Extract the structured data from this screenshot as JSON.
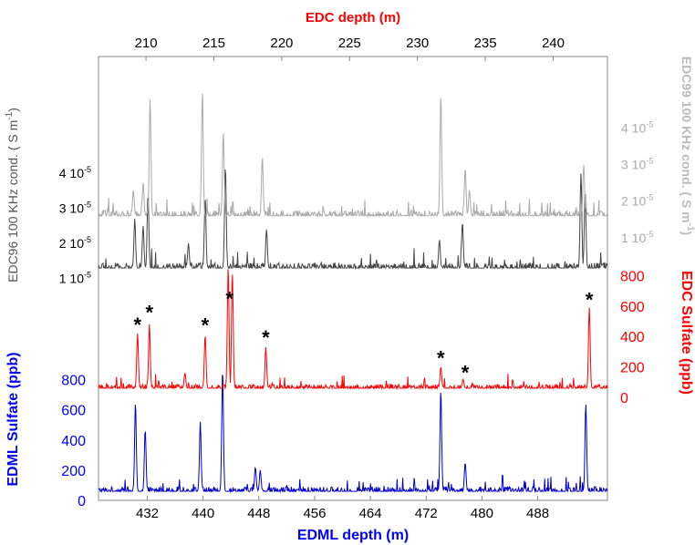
{
  "chart_data": {
    "type": "line",
    "x_axis_bottom": {
      "label": "EDML depth (m)",
      "range": [
        425,
        498
      ],
      "ticks": [
        432,
        440,
        448,
        456,
        464,
        472,
        480,
        488
      ],
      "color": "#0000ff"
    },
    "x_axis_top": {
      "label": "EDC depth (m)",
      "range": [
        206.5,
        244
      ],
      "ticks": [
        210,
        215,
        220,
        225,
        230,
        235,
        240
      ],
      "color": "#ff0000"
    },
    "left_axes": {
      "edml_sulfate": {
        "label": "EDML Sulfate (ppb)",
        "color": "#0000ff",
        "range": [
          0,
          900
        ],
        "ticks": [
          "0",
          "200",
          "400",
          "600",
          "800"
        ]
      },
      "edc96_cond": {
        "label": "EDC96 100 KHz cond. ( S m",
        "label_superscript": "-1",
        "label_suffix": ")",
        "color": "#555555",
        "range": [
          0.5,
          5.5
        ],
        "tick_values": [
          1,
          2,
          3,
          4
        ],
        "tick_mantissa": [
          "1 10",
          "2 10",
          "3 10",
          "4 10"
        ],
        "tick_exponent": "-5"
      }
    },
    "right_axes": {
      "edc_sulfate": {
        "label": "EDC Sulfate (ppb)",
        "color": "#ff0000",
        "range": [
          0,
          880
        ],
        "ticks": [
          "0",
          "200",
          "400",
          "600",
          "800"
        ]
      },
      "edc99_cond": {
        "label": "EDC99 100 KHz cond. ( S m",
        "label_superscript": "-1",
        "label_suffix": ")",
        "color": "#bbbbbb",
        "range": [
          0.6,
          5.2
        ],
        "tick_values": [
          1,
          2,
          3,
          4
        ],
        "tick_mantissa": [
          "1 10",
          "2 10",
          "3 10",
          "4 10"
        ],
        "tick_exponent": "-5"
      }
    },
    "series": [
      {
        "name": "EDML Sulfate",
        "color": "#0000cc",
        "axis": "edml_sulfate",
        "baseline": 60,
        "noise": 30,
        "peaks": [
          [
            430.3,
            650
          ],
          [
            431.7,
            470
          ],
          [
            439.6,
            520
          ],
          [
            442.8,
            870
          ],
          [
            447.5,
            220
          ],
          [
            448.2,
            200
          ],
          [
            474.1,
            730
          ],
          [
            477.6,
            250
          ],
          [
            494.9,
            640
          ]
        ]
      },
      {
        "name": "EDC Sulfate",
        "color": "#ff0000",
        "axis": "edc_sulfate",
        "baseline": 60,
        "noise": 25,
        "peaks": [
          [
            430.6,
            420
          ],
          [
            432.3,
            480
          ],
          [
            437.4,
            160
          ],
          [
            440.3,
            410
          ],
          [
            443.6,
            860
          ],
          [
            444.2,
            820
          ],
          [
            449.0,
            330
          ],
          [
            474.1,
            200
          ],
          [
            477.3,
            120
          ],
          [
            495.4,
            590
          ]
        ]
      },
      {
        "name": "EDC96 100 KHz cond.",
        "color": "#444444",
        "axis": "edc96_cond",
        "baseline": 1.3,
        "noise": 0.15,
        "peaks": [
          [
            430.2,
            2.7
          ],
          [
            431.4,
            2.5
          ],
          [
            432.1,
            3.4
          ],
          [
            437.9,
            2.0
          ],
          [
            440.3,
            3.3
          ],
          [
            443.2,
            4.2
          ],
          [
            449.1,
            2.4
          ],
          [
            473.9,
            2.1
          ],
          [
            477.2,
            2.6
          ],
          [
            494.2,
            4.0
          ],
          [
            494.8,
            3.5
          ]
        ]
      },
      {
        "name": "EDC99 100 KHz cond.",
        "color": "#aaaaaa",
        "axis": "edc99_cond",
        "baseline": 1.6,
        "noise": 0.15,
        "peaks": [
          [
            430.0,
            2.3
          ],
          [
            431.4,
            2.5
          ],
          [
            432.4,
            4.8
          ],
          [
            439.9,
            5.0
          ],
          [
            442.9,
            3.9
          ],
          [
            448.5,
            3.2
          ],
          [
            474.1,
            4.9
          ],
          [
            477.6,
            2.9
          ],
          [
            478.2,
            2.3
          ],
          [
            494.6,
            3.0
          ]
        ]
      }
    ],
    "annotations": [
      {
        "text": "*",
        "x": 430.6,
        "y_ppb_edc": 480
      },
      {
        "text": "*",
        "x": 432.3,
        "y_ppb_edc": 560
      },
      {
        "text": "*",
        "x": 440.3,
        "y_ppb_edc": 475
      },
      {
        "text": "*",
        "x": 443.8,
        "y_ppb_edc": 650
      },
      {
        "text": "*",
        "x": 449.0,
        "y_ppb_edc": 395
      },
      {
        "text": "*",
        "x": 474.1,
        "y_ppb_edc": 260
      },
      {
        "text": "*",
        "x": 477.6,
        "y_ppb_edc": 165
      },
      {
        "text": "*",
        "x": 495.4,
        "y_ppb_edc": 645
      }
    ]
  }
}
